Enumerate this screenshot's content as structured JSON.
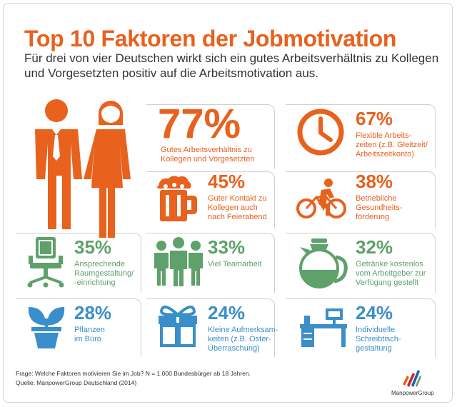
{
  "header": {
    "title": "Top 10 Faktoren der Jobmotivation",
    "subtitle": "Für drei von vier Deutschen wirkt sich ein gutes Arbeitsverhältnis zu Kollegen und Vorgesetzten positiv auf die Arbeitsmotivation aus."
  },
  "factors": [
    {
      "percent": "77%",
      "label": "Gutes Arbeitsverhältnis zu\nKollegen und Vorgesetzten",
      "icon": "people-icon",
      "color": "#e8611d"
    },
    {
      "percent": "67%",
      "label": "Flexible Arbeits-\nzeiten (z.B. Gleitzeit/\nArbeitszeitkonto)",
      "icon": "clock-icon",
      "color": "#e8611d"
    },
    {
      "percent": "45%",
      "label": "Guter Kontakt zu\nKollegen auch\nnach Feierabend",
      "icon": "beer-mug-icon",
      "color": "#e8611d"
    },
    {
      "percent": "38%",
      "label": "Betriebliche\nGesundheits-\nförderung",
      "icon": "bicycle-icon",
      "color": "#e8611d"
    },
    {
      "percent": "35%",
      "label": "Ansprechende\nRaumgestaltung/\n-einrichtung",
      "icon": "office-chair-icon",
      "color": "#5ea16a"
    },
    {
      "percent": "33%",
      "label": "Viel Teamarbeit",
      "icon": "team-icon",
      "color": "#5ea16a"
    },
    {
      "percent": "32%",
      "label": "Getränke kostenlos\nvom Arbeitgeber zur\nVerfügung gestellt",
      "icon": "coffee-pot-icon",
      "color": "#5ea16a"
    },
    {
      "percent": "28%",
      "label": "Pflanzen\nim Büro",
      "icon": "plant-icon",
      "color": "#3a8fca"
    },
    {
      "percent": "24%",
      "label": "Kleine Aufmerksam-\nkeiten (z.B. Oster-\nÜberraschung)",
      "icon": "gift-icon",
      "color": "#3a8fca"
    },
    {
      "percent": "24%",
      "label": "Individuelle\nSchreibtisch-\ngestaltung",
      "icon": "desk-icon",
      "color": "#3a8fca"
    }
  ],
  "footer": {
    "question": "Frage: Welche Faktoren motivieren Sie im Job? N = 1.000 Bundesbürger ab 18 Jahren.",
    "source": "Quelle: ManpowerGroup Deutschland (2014)"
  },
  "logo": {
    "name": "ManpowerGroup"
  }
}
